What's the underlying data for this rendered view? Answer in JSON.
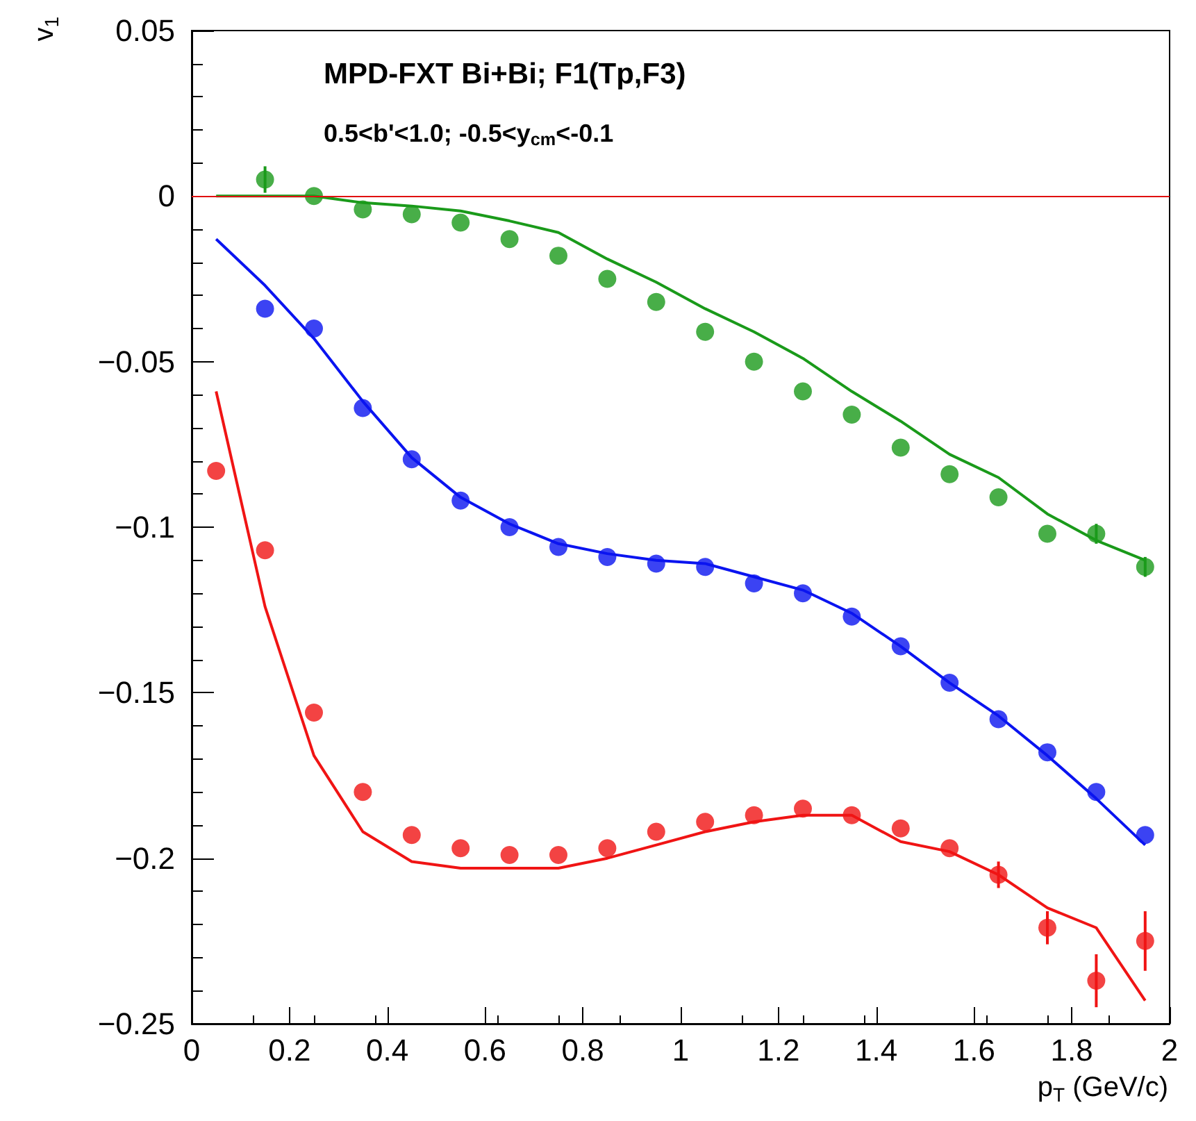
{
  "chart_data": {
    "type": "scatter",
    "title": "MPD-FXT Bi+Bi; F1(Tp,F3)",
    "subtitle": "0.5<b'<1.0; -0.5<y$_{cm}$<-0.1",
    "xlabel": "p$_{T}$ (GeV/c)",
    "ylabel": "v$_{1}$",
    "x": [
      0.05,
      0.15,
      0.25,
      0.35,
      0.45,
      0.55,
      0.65,
      0.75,
      0.85,
      0.95,
      1.05,
      1.15,
      1.25,
      1.35,
      1.45,
      1.55,
      1.65,
      1.75,
      1.85,
      1.95
    ],
    "series": [
      {
        "color": "#1a9a1a",
        "values": [
          null,
          0.005,
          0,
          -0.004,
          -0.0055,
          -0.008,
          -0.013,
          -0.018,
          -0.025,
          -0.032,
          -0.041,
          -0.05,
          -0.059,
          -0.066,
          -0.076,
          -0.084,
          -0.091,
          -0.102,
          -0.102,
          -0.112
        ],
        "errors": [
          null,
          0.004,
          null,
          null,
          null,
          null,
          null,
          null,
          null,
          null,
          null,
          null,
          null,
          null,
          null,
          null,
          null,
          null,
          0.003,
          0.003
        ]
      },
      {
        "type": "line",
        "marker": "none",
        "color": "#1a9a1a",
        "values": [
          0,
          0,
          0,
          -0.002,
          -0.003,
          -0.0045,
          -0.0075,
          -0.011,
          -0.019,
          -0.026,
          -0.034,
          -0.041,
          -0.049,
          -0.059,
          -0.068,
          -0.078,
          -0.085,
          -0.096,
          -0.104,
          -0.11
        ]
      },
      {
        "color": "#0a14f0",
        "values": [
          null,
          -0.034,
          -0.04,
          -0.064,
          -0.0795,
          -0.092,
          -0.1,
          -0.106,
          -0.109,
          -0.111,
          -0.112,
          -0.117,
          -0.12,
          -0.127,
          -0.136,
          -0.147,
          -0.158,
          -0.168,
          -0.18,
          -0.193
        ]
      },
      {
        "type": "line",
        "marker": "none",
        "color": "#0a14f0",
        "values": [
          -0.013,
          -0.027,
          -0.043,
          -0.062,
          -0.079,
          -0.091,
          -0.099,
          -0.105,
          -0.108,
          -0.11,
          -0.111,
          -0.115,
          -0.119,
          -0.126,
          -0.136,
          -0.147,
          -0.157,
          -0.169,
          -0.182,
          -0.196
        ]
      },
      {
        "color": "#f01414",
        "values": [
          -0.083,
          -0.107,
          -0.156,
          -0.18,
          -0.193,
          -0.197,
          -0.199,
          -0.199,
          -0.197,
          -0.192,
          -0.189,
          -0.187,
          -0.185,
          -0.187,
          -0.191,
          -0.197,
          -0.205,
          -0.221,
          -0.237,
          -0.225
        ],
        "errors": [
          null,
          null,
          null,
          null,
          null,
          null,
          null,
          null,
          null,
          null,
          null,
          null,
          null,
          null,
          null,
          null,
          0.004,
          0.005,
          0.008,
          0.009
        ]
      },
      {
        "type": "line",
        "marker": "none",
        "color": "#f01414",
        "values": [
          -0.059,
          -0.124,
          -0.169,
          -0.192,
          -0.201,
          -0.203,
          -0.203,
          -0.203,
          -0.2,
          -0.196,
          -0.192,
          -0.189,
          -0.187,
          -0.187,
          -0.195,
          -0.198,
          -0.205,
          -0.215,
          -0.221,
          -0.243
        ]
      }
    ],
    "ref_lines": [
      {
        "axis": "y",
        "value": 0,
        "color": "#e01010"
      }
    ],
    "xlim": [
      0,
      2
    ],
    "xticks": [
      0,
      0.2,
      0.4,
      0.6,
      0.8,
      1,
      1.2,
      1.4,
      1.6,
      1.8,
      2
    ],
    "ylim": [
      -0.25,
      0.05
    ],
    "yticks": [
      {
        "value": -0.25,
        "label": "−0.25"
      },
      {
        "value": -0.2,
        "label": "−0.2"
      },
      {
        "value": -0.15,
        "label": "−0.15"
      },
      {
        "value": -0.1,
        "label": "−0.1"
      },
      {
        "value": -0.05,
        "label": "−0.05"
      },
      0,
      0.05
    ],
    "marker": "circle",
    "grid": false
  }
}
